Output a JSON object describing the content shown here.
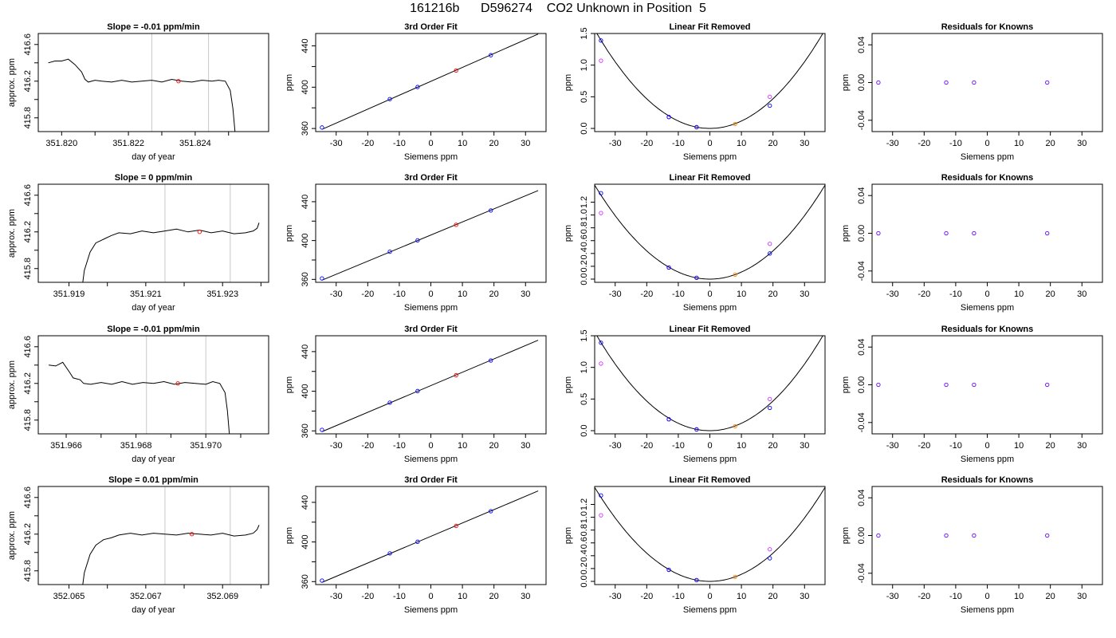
{
  "figure": {
    "title": "161216b      D596274    CO2 Unknown in Position  5"
  },
  "colors": {
    "trace": "#000000",
    "window_line": "#c8c8c8",
    "known_points": "#0000ff",
    "unknown_point": "#ff0000",
    "linear_removed_points": "#cc33ff",
    "unknown_removed_point": "#ff8800",
    "residual_points": "#6600ff"
  },
  "chart_data": [
    {
      "type": "line",
      "row": 1,
      "col": 1,
      "title": "Slope =  -0.01  ppm/min",
      "xlabel": "day of year",
      "ylabel": "approx. ppm",
      "xlim": [
        351.8193,
        351.8262
      ],
      "ylim": [
        415.65,
        416.72
      ],
      "xticks": [
        351.82,
        351.822,
        351.824
      ],
      "xtick_labels": [
        "351.820",
        "351.822",
        "351.824"
      ],
      "xticks_minor": [
        351.821,
        351.823,
        351.825
      ],
      "yticks": [
        415.8,
        416.0,
        416.2,
        416.4,
        416.6
      ],
      "ytick_labels": [
        "415.8",
        "",
        "416.2",
        "",
        "416.6"
      ],
      "vlines": [
        351.8227,
        351.8244
      ],
      "x": [
        351.8196,
        351.8198,
        351.82,
        351.8202,
        351.8204,
        351.8206,
        351.8207,
        351.8208,
        351.821,
        351.8212,
        351.8215,
        351.8218,
        351.8221,
        351.8224,
        351.8227,
        351.823,
        351.8233,
        351.8236,
        351.8239,
        351.8242,
        351.8245,
        351.8247,
        351.8249,
        351.82505,
        351.82513,
        351.8252
      ],
      "y": [
        416.4,
        416.42,
        416.42,
        416.44,
        416.38,
        416.3,
        416.22,
        416.19,
        416.21,
        416.2,
        416.19,
        416.21,
        416.19,
        416.2,
        416.21,
        416.19,
        416.22,
        416.2,
        416.19,
        416.21,
        416.2,
        416.21,
        416.2,
        416.1,
        415.9,
        415.62
      ],
      "marker": {
        "x": 351.8235,
        "y": 416.2
      }
    },
    {
      "type": "scatter",
      "row": 1,
      "col": 2,
      "title": "3rd Order Fit",
      "xlabel": "Siemens ppm",
      "ylabel": "ppm",
      "xlim": [
        -36.5,
        36.5
      ],
      "ylim": [
        357,
        452
      ],
      "xticks": [
        -30,
        -20,
        -10,
        0,
        10,
        20,
        30
      ],
      "yticks": [
        360,
        380,
        400,
        420,
        440
      ],
      "ytick_labels": [
        "360",
        "",
        "400",
        "",
        "440"
      ],
      "fit_line": {
        "x": [
          -34.5,
          34.0
        ],
        "y": [
          359.2,
          451.5
        ]
      },
      "known_points": {
        "x": [
          -34.5,
          -13,
          -4.2,
          19
        ],
        "y": [
          361.0,
          388.5,
          400.2,
          431.0
        ]
      },
      "unknown_point": {
        "x": 8,
        "y": 416.2
      }
    },
    {
      "type": "scatter",
      "row": 1,
      "col": 3,
      "title": "Linear Fit Removed",
      "xlabel": "Siemens ppm",
      "ylabel": "ppm",
      "xlim": [
        -36.5,
        36.5
      ],
      "ylim": [
        -0.05,
        1.5
      ],
      "xticks": [
        -30,
        -20,
        -10,
        0,
        10,
        20,
        30
      ],
      "yticks": [
        0.0,
        0.5,
        1.0,
        1.5
      ],
      "ytick_labels": [
        "0.0",
        "0.5",
        "1.0",
        "1.5"
      ],
      "curve_coef": 0.00117,
      "known_points": {
        "x": [
          -34.5,
          -13,
          -4.2,
          19
        ],
        "y": [
          1.39,
          0.18,
          0.02,
          0.36
        ]
      },
      "raw_points": {
        "x": [
          -34.5,
          -13,
          -4.2,
          19
        ],
        "y": [
          1.07,
          0.18,
          0.02,
          0.5
        ]
      },
      "unknown_point": {
        "x": 8,
        "y": 0.07
      }
    },
    {
      "type": "scatter",
      "row": 1,
      "col": 4,
      "title": "Residuals for Knowns",
      "xlabel": "Siemens ppm",
      "ylabel": "ppm",
      "xlim": [
        -36.5,
        36.5
      ],
      "ylim": [
        -0.052,
        0.052
      ],
      "xticks": [
        -30,
        -20,
        -10,
        0,
        10,
        20,
        30
      ],
      "yticks": [
        -0.04,
        0.0,
        0.04
      ],
      "ytick_labels": [
        "-0.04",
        "0.00",
        "0.04"
      ],
      "points": {
        "x": [
          -34.5,
          -13,
          -4.2,
          19
        ],
        "y": [
          0,
          0,
          0,
          0
        ]
      }
    },
    {
      "type": "line",
      "row": 2,
      "col": 1,
      "title": "Slope =  0  ppm/min",
      "xlabel": "day of year",
      "ylabel": "approx. ppm",
      "xlim": [
        351.9182,
        351.9242
      ],
      "ylim": [
        415.65,
        416.72
      ],
      "xticks": [
        351.919,
        351.921,
        351.923
      ],
      "xtick_labels": [
        "351.919",
        "351.921",
        "351.923"
      ],
      "xticks_minor": [
        351.92,
        351.922,
        351.924
      ],
      "yticks": [
        415.8,
        416.0,
        416.2,
        416.4,
        416.6
      ],
      "ytick_labels": [
        "415.8",
        "",
        "416.2",
        "",
        "416.6"
      ],
      "vlines": [
        351.9215,
        351.9232
      ],
      "x": [
        351.91935,
        351.9194,
        351.91955,
        351.9197,
        351.9199,
        351.9201,
        351.9203,
        351.9206,
        351.9209,
        351.9212,
        351.9215,
        351.9218,
        351.9221,
        351.9224,
        351.9227,
        351.923,
        351.9233,
        351.9236,
        351.9238,
        351.9239,
        351.92395
      ],
      "y": [
        415.62,
        415.78,
        415.98,
        416.08,
        416.12,
        416.16,
        416.19,
        416.18,
        416.21,
        416.19,
        416.21,
        416.23,
        416.2,
        416.22,
        416.19,
        416.21,
        416.18,
        416.19,
        416.21,
        416.24,
        416.3
      ],
      "marker": {
        "x": 351.9224,
        "y": 416.2
      }
    },
    {
      "type": "scatter",
      "row": 2,
      "col": 2,
      "title": "3rd Order Fit",
      "xlabel": "Siemens ppm",
      "ylabel": "ppm",
      "xlim": [
        -36.5,
        36.5
      ],
      "ylim": [
        357,
        458
      ],
      "xticks": [
        -30,
        -20,
        -10,
        0,
        10,
        20,
        30
      ],
      "yticks": [
        360,
        380,
        400,
        420,
        440
      ],
      "ytick_labels": [
        "360",
        "",
        "400",
        "",
        "440"
      ],
      "fit_line": {
        "x": [
          -34.5,
          34.0
        ],
        "y": [
          359.2,
          451.5
        ]
      },
      "known_points": {
        "x": [
          -34.5,
          -13,
          -4.2,
          19
        ],
        "y": [
          361.0,
          388.5,
          400.2,
          431.0
        ]
      },
      "unknown_point": {
        "x": 8,
        "y": 416.2
      }
    },
    {
      "type": "scatter",
      "row": 2,
      "col": 3,
      "title": "Linear Fit Removed",
      "xlabel": "Siemens ppm",
      "ylabel": "ppm",
      "xlim": [
        -36.5,
        36.5
      ],
      "ylim": [
        -0.05,
        1.48
      ],
      "xticks": [
        -30,
        -20,
        -10,
        0,
        10,
        20,
        30
      ],
      "yticks": [
        0.0,
        0.2,
        0.4,
        0.6,
        0.8,
        1.0,
        1.2
      ],
      "ytick_labels": [
        "0.0",
        "0.2",
        "0.4",
        "0.6",
        "0.8",
        "1.0",
        "1.2"
      ],
      "curve_coef": 0.0011,
      "known_points": {
        "x": [
          -34.5,
          -13,
          -4.2,
          19
        ],
        "y": [
          1.34,
          0.18,
          0.02,
          0.4
        ]
      },
      "raw_points": {
        "x": [
          -34.5,
          -13,
          -4.2,
          19
        ],
        "y": [
          1.03,
          0.18,
          0.02,
          0.55
        ]
      },
      "unknown_point": {
        "x": 8,
        "y": 0.07
      }
    },
    {
      "type": "scatter",
      "row": 2,
      "col": 4,
      "title": "Residuals for Knowns",
      "xlabel": "Siemens ppm",
      "ylabel": "ppm",
      "xlim": [
        -36.5,
        36.5
      ],
      "ylim": [
        -0.052,
        0.052
      ],
      "xticks": [
        -30,
        -20,
        -10,
        0,
        10,
        20,
        30
      ],
      "yticks": [
        -0.04,
        0.0,
        0.04
      ],
      "ytick_labels": [
        "-0.04",
        "0.00",
        "0.04"
      ],
      "points": {
        "x": [
          -34.5,
          -13,
          -4.2,
          19
        ],
        "y": [
          0,
          0,
          0,
          0
        ]
      }
    },
    {
      "type": "line",
      "row": 3,
      "col": 1,
      "title": "Slope =  -0.01  ppm/min",
      "xlabel": "day of year",
      "ylabel": "approx. ppm",
      "xlim": [
        351.9652,
        351.9718
      ],
      "ylim": [
        415.65,
        416.72
      ],
      "xticks": [
        351.966,
        351.968,
        351.97
      ],
      "xtick_labels": [
        "351.966",
        "351.968",
        "351.970"
      ],
      "xticks_minor": [
        351.967,
        351.969,
        351.971
      ],
      "yticks": [
        415.8,
        416.0,
        416.2,
        416.4,
        416.6
      ],
      "ytick_labels": [
        "415.8",
        "",
        "416.2",
        "",
        "416.6"
      ],
      "vlines": [
        351.9683,
        351.97
      ],
      "x": [
        351.9655,
        351.9657,
        351.9659,
        351.9661,
        351.9662,
        351.9664,
        351.9665,
        351.9667,
        351.967,
        351.9673,
        351.9676,
        351.9679,
        351.9682,
        351.9685,
        351.9688,
        351.9691,
        351.9694,
        351.9697,
        351.97,
        351.9702,
        351.9704,
        351.97055,
        351.97062,
        351.97068
      ],
      "y": [
        416.4,
        416.39,
        416.43,
        416.32,
        416.26,
        416.24,
        416.2,
        416.19,
        416.21,
        416.19,
        416.22,
        416.19,
        416.21,
        416.2,
        416.22,
        416.19,
        416.21,
        416.2,
        416.19,
        416.22,
        416.2,
        416.1,
        415.9,
        415.62
      ],
      "marker": {
        "x": 351.9692,
        "y": 416.2
      }
    },
    {
      "type": "scatter",
      "row": 3,
      "col": 2,
      "title": "3rd Order Fit",
      "xlabel": "Siemens ppm",
      "ylabel": "ppm",
      "xlim": [
        -36.5,
        36.5
      ],
      "ylim": [
        357,
        456
      ],
      "xticks": [
        -30,
        -20,
        -10,
        0,
        10,
        20,
        30
      ],
      "yticks": [
        360,
        380,
        400,
        420,
        440
      ],
      "ytick_labels": [
        "360",
        "",
        "400",
        "",
        "440"
      ],
      "fit_line": {
        "x": [
          -34.5,
          34.0
        ],
        "y": [
          359.2,
          451.5
        ]
      },
      "known_points": {
        "x": [
          -34.5,
          -13,
          -4.2,
          19
        ],
        "y": [
          361.0,
          388.5,
          400.2,
          431.0
        ]
      },
      "unknown_point": {
        "x": 8,
        "y": 416.2
      }
    },
    {
      "type": "scatter",
      "row": 3,
      "col": 3,
      "title": "Linear Fit Removed",
      "xlabel": "Siemens ppm",
      "ylabel": "ppm",
      "xlim": [
        -36.5,
        36.5
      ],
      "ylim": [
        -0.05,
        1.5
      ],
      "xticks": [
        -30,
        -20,
        -10,
        0,
        10,
        20,
        30
      ],
      "yticks": [
        0.0,
        0.5,
        1.0,
        1.5
      ],
      "ytick_labels": [
        "0.0",
        "0.5",
        "1.0",
        "1.5"
      ],
      "curve_coef": 0.00117,
      "known_points": {
        "x": [
          -34.5,
          -13,
          -4.2,
          19
        ],
        "y": [
          1.39,
          0.18,
          0.02,
          0.36
        ]
      },
      "raw_points": {
        "x": [
          -34.5,
          -13,
          -4.2,
          19
        ],
        "y": [
          1.06,
          0.18,
          0.02,
          0.5
        ]
      },
      "unknown_point": {
        "x": 8,
        "y": 0.07
      }
    },
    {
      "type": "scatter",
      "row": 3,
      "col": 4,
      "title": "Residuals for Knowns",
      "xlabel": "Siemens ppm",
      "ylabel": "ppm",
      "xlim": [
        -36.5,
        36.5
      ],
      "ylim": [
        -0.052,
        0.052
      ],
      "xticks": [
        -30,
        -20,
        -10,
        0,
        10,
        20,
        30
      ],
      "yticks": [
        -0.04,
        0.0,
        0.04
      ],
      "ytick_labels": [
        "-0.04",
        "0.00",
        "0.04"
      ],
      "points": {
        "x": [
          -34.5,
          -13,
          -4.2,
          19
        ],
        "y": [
          0,
          0,
          0,
          0
        ]
      }
    },
    {
      "type": "line",
      "row": 4,
      "col": 1,
      "title": "Slope =  0.01  ppm/min",
      "xlabel": "day of year",
      "ylabel": "approx. ppm",
      "xlim": [
        352.0642,
        352.0702
      ],
      "ylim": [
        415.65,
        416.72
      ],
      "xticks": [
        352.065,
        352.067,
        352.069
      ],
      "xtick_labels": [
        "352.065",
        "352.067",
        "352.069"
      ],
      "xticks_minor": [
        352.066,
        352.068,
        352.07
      ],
      "yticks": [
        415.8,
        416.0,
        416.2,
        416.4,
        416.6
      ],
      "ytick_labels": [
        "415.8",
        "",
        "416.2",
        "",
        "416.6"
      ],
      "vlines": [
        352.0675,
        352.0692
      ],
      "x": [
        352.06535,
        352.0654,
        352.06555,
        352.0657,
        352.0659,
        352.0661,
        352.0663,
        352.0666,
        352.0669,
        352.0672,
        352.0675,
        352.0678,
        352.0681,
        352.0684,
        352.0687,
        352.069,
        352.0693,
        352.0696,
        352.0698,
        352.0699,
        352.06995
      ],
      "y": [
        415.62,
        415.78,
        415.98,
        416.08,
        416.14,
        416.16,
        416.19,
        416.21,
        416.19,
        416.21,
        416.2,
        416.19,
        416.21,
        416.2,
        416.19,
        416.21,
        416.18,
        416.19,
        416.21,
        416.25,
        416.3
      ],
      "marker": {
        "x": 352.0682,
        "y": 416.2
      }
    },
    {
      "type": "scatter",
      "row": 4,
      "col": 2,
      "title": "3rd Order Fit",
      "xlabel": "Siemens ppm",
      "ylabel": "ppm",
      "xlim": [
        -36.5,
        36.5
      ],
      "ylim": [
        357,
        456
      ],
      "xticks": [
        -30,
        -20,
        -10,
        0,
        10,
        20,
        30
      ],
      "yticks": [
        360,
        380,
        400,
        420,
        440
      ],
      "ytick_labels": [
        "360",
        "",
        "400",
        "",
        "440"
      ],
      "fit_line": {
        "x": [
          -34.5,
          34.0
        ],
        "y": [
          359.2,
          451.5
        ]
      },
      "known_points": {
        "x": [
          -34.5,
          -13,
          -4.2,
          19
        ],
        "y": [
          361.0,
          388.5,
          400.2,
          431.0
        ]
      },
      "unknown_point": {
        "x": 8,
        "y": 416.2
      }
    },
    {
      "type": "scatter",
      "row": 4,
      "col": 3,
      "title": "Linear Fit Removed",
      "xlabel": "Siemens ppm",
      "ylabel": "ppm",
      "xlim": [
        -36.5,
        36.5
      ],
      "ylim": [
        -0.05,
        1.48
      ],
      "xticks": [
        -30,
        -20,
        -10,
        0,
        10,
        20,
        30
      ],
      "yticks": [
        0.0,
        0.2,
        0.4,
        0.6,
        0.8,
        1.0,
        1.2
      ],
      "ytick_labels": [
        "0.0",
        "0.2",
        "0.4",
        "0.6",
        "0.8",
        "1.0",
        "1.2"
      ],
      "curve_coef": 0.0011,
      "known_points": {
        "x": [
          -34.5,
          -13,
          -4.2,
          19
        ],
        "y": [
          1.34,
          0.18,
          0.02,
          0.36
        ]
      },
      "raw_points": {
        "x": [
          -34.5,
          -13,
          -4.2,
          19
        ],
        "y": [
          1.03,
          0.18,
          0.02,
          0.5
        ]
      },
      "unknown_point": {
        "x": 8,
        "y": 0.07
      }
    },
    {
      "type": "scatter",
      "row": 4,
      "col": 4,
      "title": "Residuals for Knowns",
      "xlabel": "Siemens ppm",
      "ylabel": "ppm",
      "xlim": [
        -36.5,
        36.5
      ],
      "ylim": [
        -0.052,
        0.052
      ],
      "xticks": [
        -30,
        -20,
        -10,
        0,
        10,
        20,
        30
      ],
      "yticks": [
        -0.04,
        0.0,
        0.04
      ],
      "ytick_labels": [
        "-0.04",
        "0.00",
        "0.04"
      ],
      "points": {
        "x": [
          -34.5,
          -13,
          -4.2,
          19
        ],
        "y": [
          0,
          0,
          0,
          0
        ]
      }
    }
  ]
}
